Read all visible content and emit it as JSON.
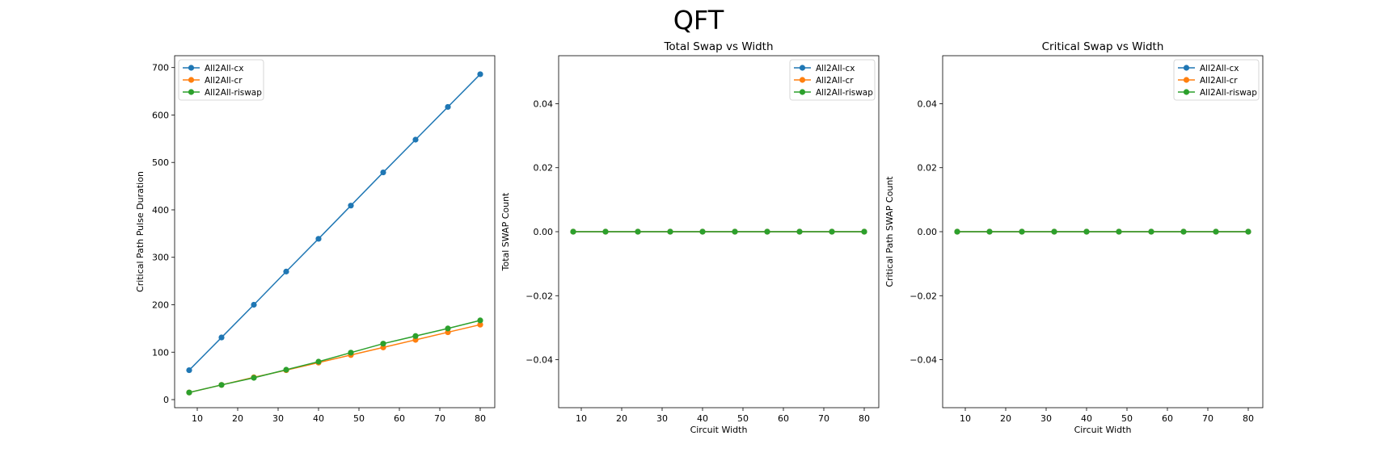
{
  "figure": {
    "title": "QFT"
  },
  "chart_data": [
    {
      "type": "line",
      "title": "",
      "xlabel": "",
      "ylabel": "Critical Path Pulse Duration",
      "x": [
        8,
        16,
        24,
        32,
        40,
        48,
        56,
        64,
        72,
        80
      ],
      "xlim": [
        4.4,
        83.6
      ],
      "ylim": [
        -17,
        725
      ],
      "xticks": [
        10,
        20,
        30,
        40,
        50,
        60,
        70,
        80
      ],
      "yticks": [
        0,
        100,
        200,
        300,
        400,
        500,
        600,
        700
      ],
      "yticklabels": [
        "0",
        "100",
        "200",
        "300",
        "400",
        "500",
        "600",
        "700"
      ],
      "legend": "upper-left",
      "grid": false,
      "series": [
        {
          "name": "All2All-cx",
          "color": "#1f77b4",
          "values": [
            62,
            131,
            200,
            270,
            339,
            409,
            479,
            548,
            617,
            686
          ]
        },
        {
          "name": "All2All-cr",
          "color": "#ff7f0e",
          "values": [
            15,
            31,
            47,
            62,
            78,
            94,
            110,
            126,
            142,
            158
          ]
        },
        {
          "name": "All2All-riswap",
          "color": "#2ca02c",
          "values": [
            15,
            31,
            46,
            63,
            80,
            99,
            118,
            134,
            150,
            167
          ]
        }
      ]
    },
    {
      "type": "line",
      "title": "Total Swap vs Width",
      "xlabel": "Circuit Width",
      "ylabel": "Total SWAP Count",
      "x": [
        8,
        16,
        24,
        32,
        40,
        48,
        56,
        64,
        72,
        80
      ],
      "xlim": [
        4.4,
        83.6
      ],
      "ylim": [
        -0.055,
        0.055
      ],
      "xticks": [
        10,
        20,
        30,
        40,
        50,
        60,
        70,
        80
      ],
      "yticks": [
        -0.04,
        -0.02,
        0.0,
        0.02,
        0.04
      ],
      "yticklabels": [
        "−0.04",
        "−0.02",
        "0.00",
        "0.02",
        "0.04"
      ],
      "legend": "upper-right",
      "grid": false,
      "series": [
        {
          "name": "All2All-cx",
          "color": "#1f77b4",
          "values": [
            0,
            0,
            0,
            0,
            0,
            0,
            0,
            0,
            0,
            0
          ]
        },
        {
          "name": "All2All-cr",
          "color": "#ff7f0e",
          "values": [
            0,
            0,
            0,
            0,
            0,
            0,
            0,
            0,
            0,
            0
          ]
        },
        {
          "name": "All2All-riswap",
          "color": "#2ca02c",
          "values": [
            0,
            0,
            0,
            0,
            0,
            0,
            0,
            0,
            0,
            0
          ]
        }
      ]
    },
    {
      "type": "line",
      "title": "Critical Swap vs Width",
      "xlabel": "Circuit Width",
      "ylabel": "Critical Path SWAP Count",
      "x": [
        8,
        16,
        24,
        32,
        40,
        48,
        56,
        64,
        72,
        80
      ],
      "xlim": [
        4.4,
        83.6
      ],
      "ylim": [
        -0.055,
        0.055
      ],
      "xticks": [
        10,
        20,
        30,
        40,
        50,
        60,
        70,
        80
      ],
      "yticks": [
        -0.04,
        -0.02,
        0.0,
        0.02,
        0.04
      ],
      "yticklabels": [
        "−0.04",
        "−0.02",
        "0.00",
        "0.02",
        "0.04"
      ],
      "legend": "upper-right",
      "grid": false,
      "series": [
        {
          "name": "All2All-cx",
          "color": "#1f77b4",
          "values": [
            0,
            0,
            0,
            0,
            0,
            0,
            0,
            0,
            0,
            0
          ]
        },
        {
          "name": "All2All-cr",
          "color": "#ff7f0e",
          "values": [
            0,
            0,
            0,
            0,
            0,
            0,
            0,
            0,
            0,
            0
          ]
        },
        {
          "name": "All2All-riswap",
          "color": "#2ca02c",
          "values": [
            0,
            0,
            0,
            0,
            0,
            0,
            0,
            0,
            0,
            0
          ]
        }
      ]
    }
  ]
}
